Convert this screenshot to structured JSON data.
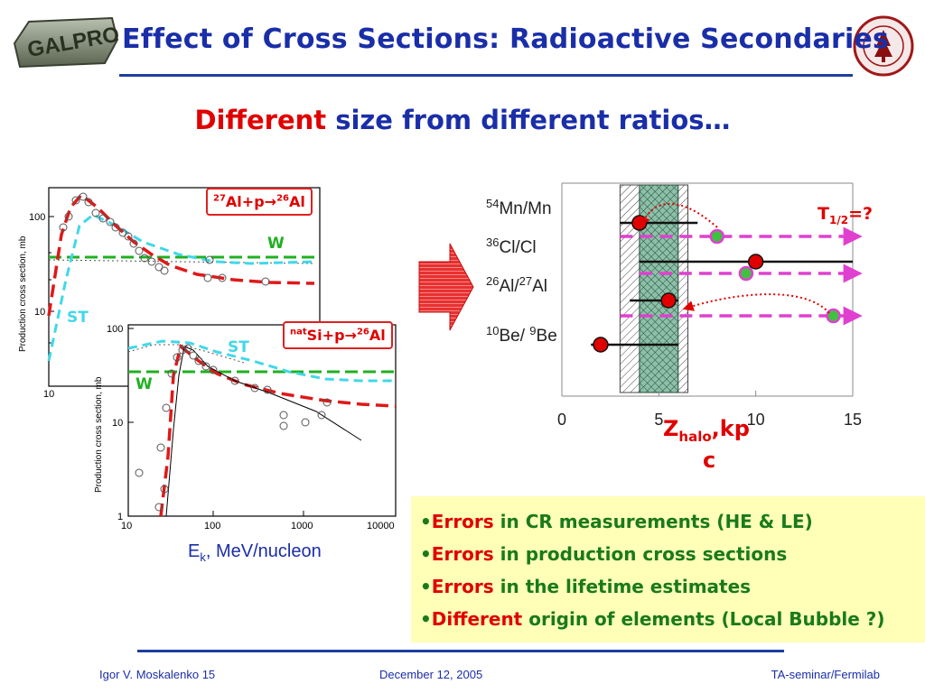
{
  "title": "Effect of Cross Sections: Radioactive Secondaries",
  "logo_text": "GALPROP",
  "subtitle": {
    "highlight": "Different",
    "rest": " size from different ratios…"
  },
  "plot1": {
    "ylabel": "Production cross section, mb",
    "y_ticks": [
      "100",
      "10"
    ],
    "x_ticks": [
      "10"
    ],
    "reaction": {
      "pre": "27",
      "el1": "Al+p",
      "arrow": "→",
      "post": "26",
      "el2": "Al"
    },
    "label_w": "W",
    "label_st": "ST"
  },
  "plot2": {
    "ylabel": "Production cross section, mb",
    "y_ticks": [
      "100",
      "10",
      "1"
    ],
    "x_ticks": [
      "10",
      "100",
      "1000",
      "10000"
    ],
    "reaction": {
      "pre": "nat",
      "el1": "Si+p",
      "arrow": "→",
      "post": "26",
      "el2": "Al"
    },
    "label_w": "W",
    "label_st": "ST"
  },
  "ek_label": {
    "main": "E",
    "sub": "k",
    "rest": ", MeV/nucleon"
  },
  "ratio_chart": {
    "rows": [
      {
        "sup1": "54",
        "el1": "Mn/Mn",
        "sup2": "",
        "el2": ""
      },
      {
        "sup1": "36",
        "el1": "Cl/Cl",
        "sup2": "",
        "el2": ""
      },
      {
        "sup1": "26",
        "el1": "Al/",
        "sup2": "27",
        "el2": "Al"
      },
      {
        "sup1": "10",
        "el1": "Be/ ",
        "sup2": "9",
        "el2": "Be"
      }
    ],
    "x_ticks": [
      "0",
      "5",
      "10",
      "15"
    ],
    "xlabel_main": "Z",
    "xlabel_sub": "halo",
    "xlabel_unit_top": ",kp",
    "xlabel_unit_bottom": "c",
    "t_half": {
      "main": "T",
      "sub": "1/2",
      "rest": "=?"
    }
  },
  "chart_data": {
    "type": "scatter",
    "title": "",
    "xlabel": "Zhalo, kpc",
    "xlim": [
      0,
      15
    ],
    "categories": [
      "54Mn/Mn",
      "36Cl/Cl",
      "26Al/27Al",
      "10Be/9Be"
    ],
    "series": [
      {
        "name": "",
        "points": [
          {
            "ratio": "54Mn/Mn",
            "x": 4,
            "xmin": 3,
            "xmax": 7
          },
          {
            "ratio": "36Cl/Cl",
            "x": 10,
            "xmin": 4,
            "xmax": 15
          },
          {
            "ratio": "26Al/27Al",
            "x": 5.5,
            "xmin": 3.5,
            "xmax": 6
          },
          {
            "ratio": "10Be/9Be",
            "x": 2,
            "xmin": 1.5,
            "xmax": 6
          }
        ]
      },
      {
        "name": "",
        "points": [
          {
            "ratio": "54Mn/Mn",
            "x": 8
          },
          {
            "ratio": "36Cl/Cl",
            "x": 9.5
          },
          {
            "ratio": "26Al/27Al",
            "x": 14
          }
        ]
      }
    ],
    "band": {
      "inner": [
        4,
        6
      ],
      "outer": [
        3,
        6.5
      ]
    }
  },
  "bullets": [
    {
      "hl": "Errors",
      "rest": " in CR measurements (HE & LE)"
    },
    {
      "hl": "Errors",
      "rest": " in production cross sections"
    },
    {
      "hl": "Errors",
      "rest": " in the lifetime estimates"
    },
    {
      "hl": "Different",
      "rest": " origin of elements (Local Bubble ?)"
    }
  ],
  "footer": {
    "left": "Igor V. Moskalenko  15",
    "center": "December 12, 2005",
    "right": "TA-seminar/Fermilab"
  },
  "colors": {
    "accent": "#1a2ea8",
    "red": "#e00000",
    "green": "#1a7a1a",
    "magenta": "#e040d0",
    "bullet_bg": "#ffffb8"
  }
}
